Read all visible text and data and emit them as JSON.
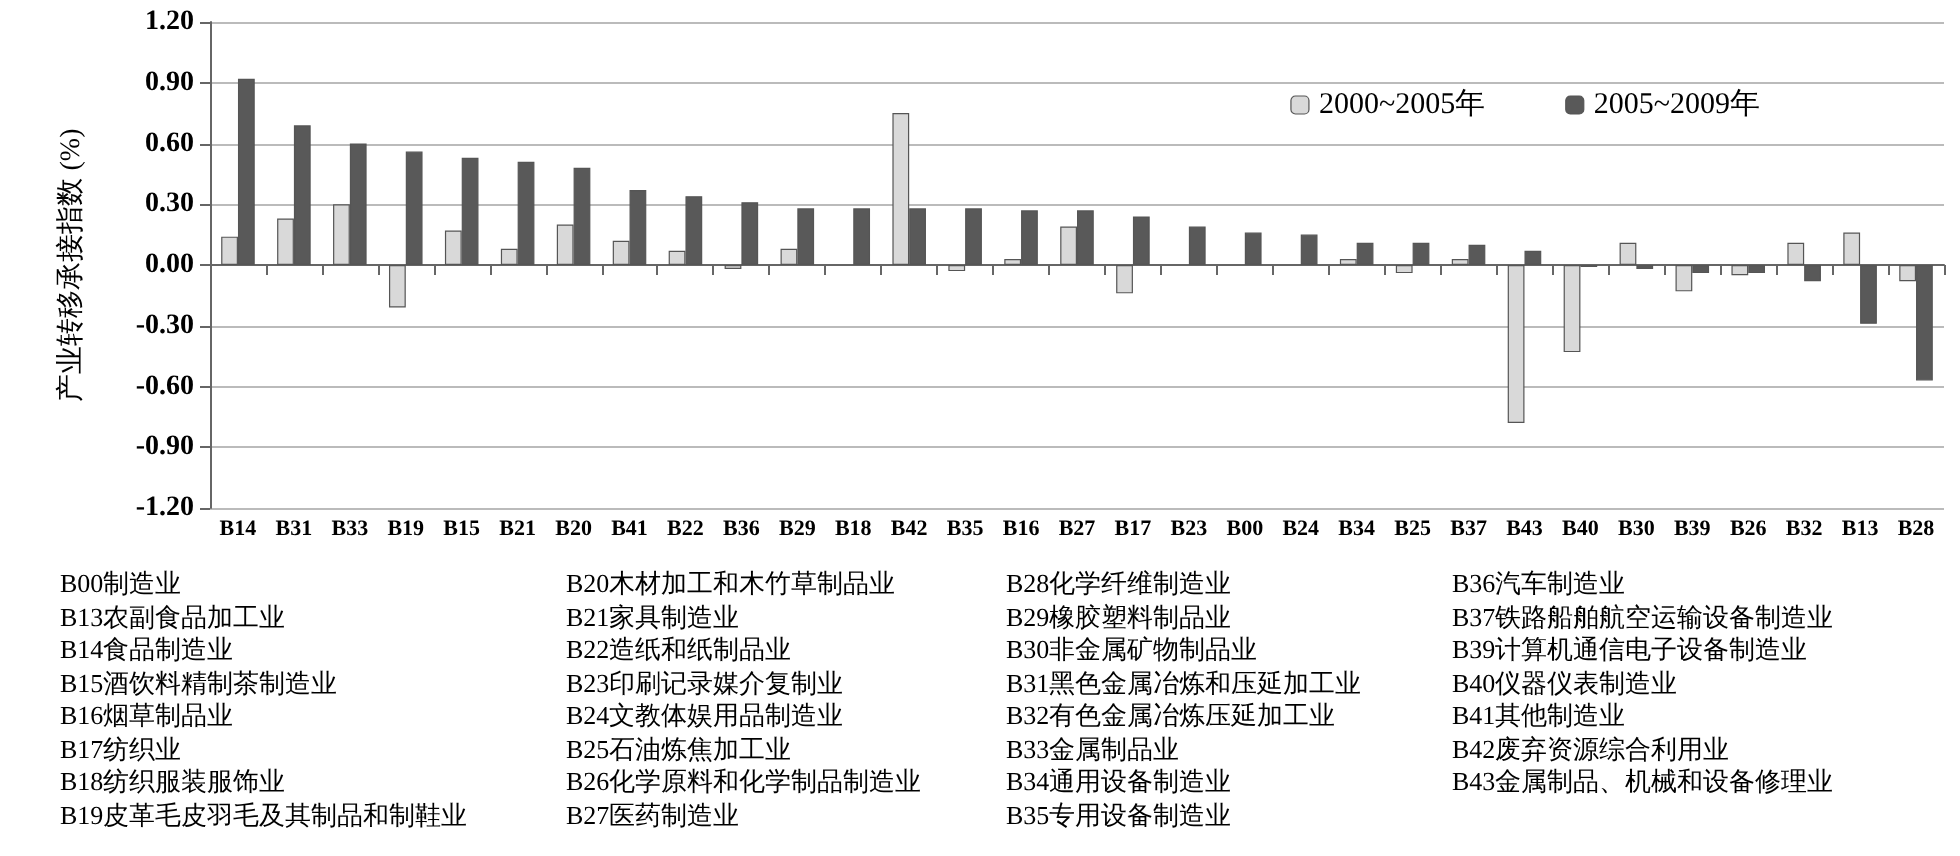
{
  "chart_data": {
    "type": "bar",
    "ylabel": "产业转移承接指数 (%)",
    "categories": [
      "B14",
      "B31",
      "B33",
      "B19",
      "B15",
      "B21",
      "B20",
      "B41",
      "B22",
      "B36",
      "B29",
      "B18",
      "B42",
      "B35",
      "B16",
      "B27",
      "B17",
      "B23",
      "B00",
      "B24",
      "B34",
      "B25",
      "B37",
      "B43",
      "B40",
      "B30",
      "B39",
      "B26",
      "B32",
      "B13",
      "B28"
    ],
    "series": [
      {
        "name": "2000~2005年",
        "color": "#d9d9d9",
        "values": [
          0.14,
          0.23,
          0.3,
          -0.21,
          0.17,
          0.08,
          0.2,
          0.12,
          0.07,
          -0.02,
          0.08,
          0,
          0.75,
          -0.03,
          0.03,
          0.19,
          -0.14,
          0,
          0,
          0,
          0.03,
          -0.04,
          0.03,
          -0.78,
          -0.43,
          0.11,
          -0.13,
          -0.05,
          0.11,
          0.16,
          -0.08
        ]
      },
      {
        "name": "2005~2009年",
        "color": "#595959",
        "values": [
          0.92,
          0.69,
          0.6,
          0.56,
          0.53,
          0.51,
          0.48,
          0.37,
          0.34,
          0.31,
          0.28,
          0.28,
          0.28,
          0.28,
          0.27,
          0.27,
          0.24,
          0.19,
          0.16,
          0.15,
          0.11,
          0.11,
          0.1,
          0.07,
          -0.01,
          -0.02,
          -0.04,
          -0.04,
          -0.08,
          -0.29,
          -0.57
        ]
      }
    ],
    "ylim": [
      -1.2,
      1.2
    ],
    "yticks": [
      {
        "value": -1.2,
        "label": "-1.20"
      },
      {
        "value": -0.9,
        "label": "-0.90"
      },
      {
        "value": -0.6,
        "label": "-0.60"
      },
      {
        "value": -0.3,
        "label": "-0.30"
      },
      {
        "value": 0,
        "label": "0.00"
      },
      {
        "value": 0.3,
        "label": "0.30"
      },
      {
        "value": 0.6,
        "label": "0.60"
      },
      {
        "value": 0.9,
        "label": "0.90"
      },
      {
        "value": 1.2,
        "label": "1.20"
      }
    ],
    "grid": "y",
    "legend": "top right",
    "annotations": [
      "B00制造业",
      "B13农副食品加工业",
      "B14食品制造业",
      "B15酒饮料精制茶制造业",
      "B16烟草制品业",
      "B17纺织业",
      "B18纺织服装服饰业",
      "B19皮革毛皮羽毛及其制品和制鞋业",
      "B20木材加工和木竹草制品业",
      "B21家具制造业",
      "B22造纸和纸制品业",
      "B23印刷记录媒介复制业",
      "B24文教体娱用品制造业",
      "B25石油炼焦加工业",
      "B26化学原料和化学制品制造业",
      "B27医药制造业",
      "B28化学纤维制造业",
      "B29橡胶塑料制品业",
      "B30非金属矿物制品业",
      "B31黑色金属冶炼和压延加工业",
      "B32有色金属冶炼压延加工业",
      "B33金属制品业",
      "B34通用设备制造业",
      "B35专用设备制造业",
      "B36汽车制造业",
      "B37铁路船舶航空运输设备制造业",
      "B39计算机通信电子设备制造业",
      "B40仪器仪表制造业",
      "B41其他制造业",
      "B42废弃资源综合利用业",
      "B43金属制品、机械和设备修理业"
    ]
  }
}
